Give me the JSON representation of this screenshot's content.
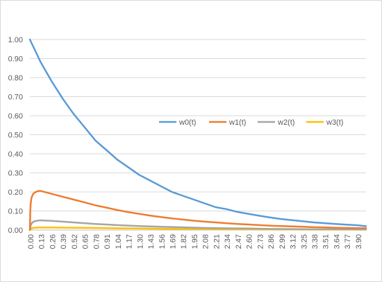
{
  "chart_data": {
    "type": "line",
    "title": "",
    "xlabel": "",
    "ylabel": "",
    "ylim": [
      0,
      1.0
    ],
    "y_ticks": [
      "0.00",
      "0.10",
      "0.20",
      "0.30",
      "0.40",
      "0.50",
      "0.60",
      "0.70",
      "0.80",
      "0.90",
      "1.00"
    ],
    "x_ticks": [
      "0.00",
      "0.13",
      "0.26",
      "0.39",
      "0.52",
      "0.65",
      "0.78",
      "0.91",
      "1.04",
      "1.17",
      "1.30",
      "1.43",
      "1.56",
      "1.69",
      "1.82",
      "1.95",
      "2.08",
      "2.21",
      "2.34",
      "2.47",
      "2.60",
      "2.73",
      "2.86",
      "2.99",
      "3.12",
      "3.25",
      "3.38",
      "3.51",
      "3.64",
      "3.77",
      "3.90"
    ],
    "xlim": [
      0,
      4.0
    ],
    "grid": true,
    "legend_position": "right-middle",
    "series": [
      {
        "name": "w0(t)",
        "color": "#5B9BD5",
        "x": [
          0.0,
          0.13,
          0.26,
          0.39,
          0.52,
          0.65,
          0.78,
          0.91,
          1.04,
          1.17,
          1.3,
          1.43,
          1.56,
          1.69,
          1.82,
          1.95,
          2.08,
          2.21,
          2.34,
          2.47,
          2.6,
          2.73,
          2.86,
          2.99,
          3.12,
          3.25,
          3.38,
          3.51,
          3.64,
          3.77,
          3.9,
          4.0
        ],
        "values": [
          1.0,
          0.88,
          0.78,
          0.69,
          0.61,
          0.54,
          0.47,
          0.42,
          0.37,
          0.33,
          0.29,
          0.26,
          0.23,
          0.2,
          0.18,
          0.16,
          0.14,
          0.12,
          0.11,
          0.095,
          0.085,
          0.075,
          0.066,
          0.058,
          0.052,
          0.046,
          0.04,
          0.036,
          0.032,
          0.028,
          0.025,
          0.02
        ]
      },
      {
        "name": "w1(t)",
        "color": "#ED7D31",
        "x": [
          0.0,
          0.005,
          0.01,
          0.02,
          0.04,
          0.07,
          0.1,
          0.13,
          0.26,
          0.39,
          0.52,
          0.65,
          0.78,
          0.91,
          1.04,
          1.17,
          1.3,
          1.43,
          1.56,
          1.69,
          1.82,
          1.95,
          2.08,
          2.21,
          2.34,
          2.47,
          2.6,
          2.73,
          2.86,
          2.99,
          3.12,
          3.25,
          3.38,
          3.51,
          3.64,
          3.77,
          3.9,
          4.0
        ],
        "values": [
          0.0,
          0.1,
          0.14,
          0.17,
          0.19,
          0.2,
          0.205,
          0.205,
          0.19,
          0.175,
          0.16,
          0.145,
          0.13,
          0.118,
          0.105,
          0.094,
          0.085,
          0.076,
          0.068,
          0.061,
          0.055,
          0.049,
          0.044,
          0.04,
          0.036,
          0.032,
          0.029,
          0.026,
          0.023,
          0.021,
          0.019,
          0.017,
          0.015,
          0.014,
          0.012,
          0.011,
          0.01,
          0.009
        ]
      },
      {
        "name": "w2(t)",
        "color": "#A5A5A5",
        "x": [
          0.0,
          0.01,
          0.03,
          0.06,
          0.1,
          0.13,
          0.26,
          0.39,
          0.52,
          0.65,
          0.78,
          0.91,
          1.04,
          1.3,
          1.56,
          1.82,
          2.08,
          2.34,
          2.6,
          2.86,
          3.12,
          3.38,
          3.64,
          3.9,
          4.0
        ],
        "values": [
          0.0,
          0.025,
          0.04,
          0.047,
          0.05,
          0.051,
          0.048,
          0.044,
          0.04,
          0.036,
          0.032,
          0.029,
          0.026,
          0.021,
          0.017,
          0.014,
          0.011,
          0.009,
          0.008,
          0.006,
          0.005,
          0.004,
          0.004,
          0.003,
          0.003
        ]
      },
      {
        "name": "w3(t)",
        "color": "#FFC000",
        "x": [
          0.0,
          0.01,
          0.03,
          0.06,
          0.1,
          0.13,
          0.26,
          0.52,
          0.78,
          1.04,
          1.3,
          1.56,
          1.82,
          2.08,
          2.34,
          2.6,
          2.86,
          3.12,
          3.38,
          3.64,
          3.9,
          4.0
        ],
        "values": [
          0.0,
          0.006,
          0.01,
          0.012,
          0.013,
          0.013,
          0.013,
          0.012,
          0.011,
          0.009,
          0.008,
          0.007,
          0.006,
          0.005,
          0.004,
          0.004,
          0.003,
          0.003,
          0.002,
          0.002,
          0.002,
          0.002
        ]
      }
    ]
  }
}
